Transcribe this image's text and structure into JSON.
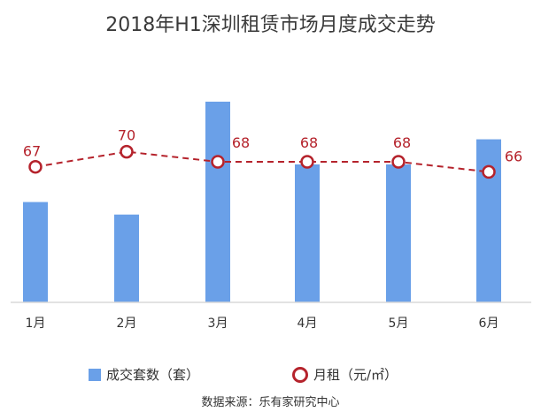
{
  "title": "2018年H1深圳租赁市场月度成交走势",
  "source": "数据来源：乐有家研究中心",
  "legend": {
    "bar_label": "成交套数（套）",
    "line_label": "月租（元/㎡）"
  },
  "colors": {
    "bar": "#6aa0e8",
    "line": "#b5232c",
    "axis": "#d9d9d9"
  },
  "chart_data": {
    "type": "bar",
    "categories": [
      "1月",
      "2月",
      "3月",
      "4月",
      "5月",
      "6月"
    ],
    "series": [
      {
        "name": "成交套数（套）",
        "type": "bar",
        "values": [
          16,
          14,
          32,
          22,
          22,
          26
        ]
      },
      {
        "name": "月租（元/㎡）",
        "type": "line",
        "values": [
          67,
          70,
          68,
          68,
          68,
          66
        ]
      }
    ],
    "data_labels": [
      "67",
      "70",
      "68",
      "68",
      "68",
      "66"
    ],
    "title": "2018年H1深圳租赁市场月度成交走势",
    "grid": false,
    "legend_position": "bottom"
  }
}
